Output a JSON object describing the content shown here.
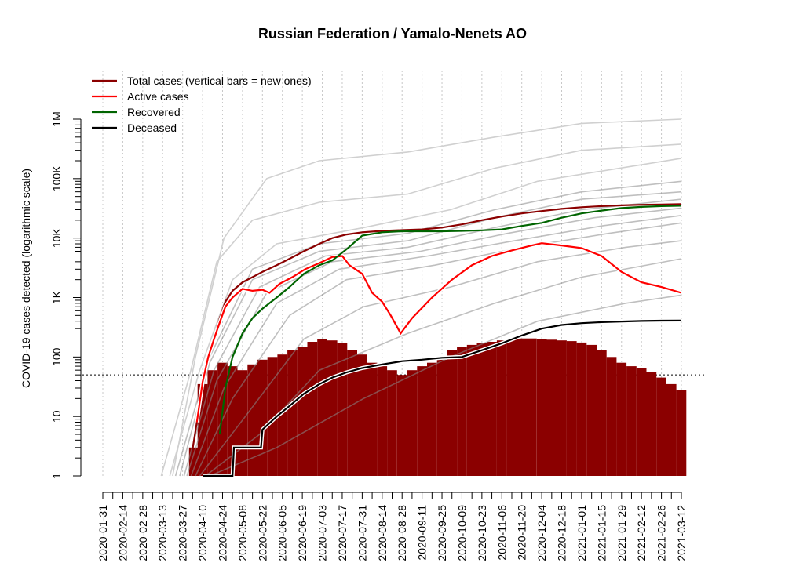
{
  "chart_data": {
    "type": "line",
    "title": "Russian Federation / Yamalo-Nenets AO",
    "ylabel": "COVID-19 cases detected (logarithmic scale)",
    "xlabel": "",
    "y_scale": "log",
    "ylim": [
      1,
      1000000
    ],
    "y_ticks": [
      {
        "value": 1,
        "label": "1"
      },
      {
        "value": 10,
        "label": "10"
      },
      {
        "value": 100,
        "label": "100"
      },
      {
        "value": 1000,
        "label": "1K"
      },
      {
        "value": 10000,
        "label": "10K"
      },
      {
        "value": 100000,
        "label": "100K"
      },
      {
        "value": 1000000,
        "label": "1M"
      }
    ],
    "x_range": [
      "2020-01-31",
      "2021-03-12"
    ],
    "x_tick_labels": [
      "2020-01-31",
      "2020-02-14",
      "2020-02-28",
      "2020-03-13",
      "2020-03-27",
      "2020-04-10",
      "2020-04-24",
      "2020-05-08",
      "2020-05-22",
      "2020-06-05",
      "2020-06-19",
      "2020-07-03",
      "2020-07-17",
      "2020-07-31",
      "2020-08-14",
      "2020-08-28",
      "2020-09-11",
      "2020-09-25",
      "2020-10-09",
      "2020-10-23",
      "2020-11-06",
      "2020-11-20",
      "2020-12-04",
      "2020-12-18",
      "2021-01-01",
      "2021-01-15",
      "2021-01-29",
      "2021-02-12",
      "2021-02-26",
      "2021-03-12"
    ],
    "grid": "vertical dotted",
    "reference_line": 50,
    "legend_position": "top-left",
    "legend": [
      {
        "label": "Total cases (vertical bars = new ones)",
        "color": "#8b0000"
      },
      {
        "label": "Active cases",
        "color": "#ff0000"
      },
      {
        "label": "Recovered",
        "color": "#006400"
      },
      {
        "label": "Deceased",
        "color": "#000000"
      }
    ],
    "series": [
      {
        "name": "Total cases (vertical bars = new ones)",
        "color": "#8b0000",
        "points": [
          [
            "2020-04-02",
            2
          ],
          [
            "2020-04-06",
            8
          ],
          [
            "2020-04-10",
            40
          ],
          [
            "2020-04-14",
            110
          ],
          [
            "2020-04-18",
            220
          ],
          [
            "2020-04-22",
            450
          ],
          [
            "2020-04-26",
            850
          ],
          [
            "2020-05-01",
            1300
          ],
          [
            "2020-05-08",
            1800
          ],
          [
            "2020-05-15",
            2200
          ],
          [
            "2020-05-22",
            2700
          ],
          [
            "2020-06-01",
            3500
          ],
          [
            "2020-06-10",
            4500
          ],
          [
            "2020-06-20",
            6000
          ],
          [
            "2020-07-01",
            8000
          ],
          [
            "2020-07-10",
            10000
          ],
          [
            "2020-07-20",
            11500
          ],
          [
            "2020-07-31",
            12500
          ],
          [
            "2020-08-14",
            13200
          ],
          [
            "2020-08-28",
            13600
          ],
          [
            "2020-09-11",
            14000
          ],
          [
            "2020-09-25",
            15000
          ],
          [
            "2020-10-09",
            17000
          ],
          [
            "2020-10-23",
            20000
          ],
          [
            "2020-11-06",
            23000
          ],
          [
            "2020-11-20",
            26000
          ],
          [
            "2020-12-04",
            28500
          ],
          [
            "2020-12-18",
            31000
          ],
          [
            "2021-01-01",
            33000
          ],
          [
            "2021-01-15",
            34500
          ],
          [
            "2021-01-29",
            35500
          ],
          [
            "2021-02-12",
            36300
          ],
          [
            "2021-02-26",
            36800
          ],
          [
            "2021-03-12",
            37200
          ]
        ]
      },
      {
        "name": "Active cases",
        "color": "#ff0000",
        "points": [
          [
            "2020-04-06",
            8
          ],
          [
            "2020-04-10",
            38
          ],
          [
            "2020-04-14",
            100
          ],
          [
            "2020-04-18",
            200
          ],
          [
            "2020-04-22",
            380
          ],
          [
            "2020-04-26",
            700
          ],
          [
            "2020-05-01",
            1000
          ],
          [
            "2020-05-08",
            1400
          ],
          [
            "2020-05-15",
            1300
          ],
          [
            "2020-05-22",
            1350
          ],
          [
            "2020-05-27",
            1200
          ],
          [
            "2020-06-03",
            1700
          ],
          [
            "2020-06-12",
            2200
          ],
          [
            "2020-06-21",
            3000
          ],
          [
            "2020-07-01",
            3800
          ],
          [
            "2020-07-10",
            4800
          ],
          [
            "2020-07-17",
            5000
          ],
          [
            "2020-07-22",
            3500
          ],
          [
            "2020-07-31",
            2500
          ],
          [
            "2020-08-07",
            1200
          ],
          [
            "2020-08-14",
            850
          ],
          [
            "2020-08-20",
            500
          ],
          [
            "2020-08-27",
            250
          ],
          [
            "2020-09-04",
            450
          ],
          [
            "2020-09-18",
            1000
          ],
          [
            "2020-10-02",
            2000
          ],
          [
            "2020-10-16",
            3500
          ],
          [
            "2020-10-30",
            5000
          ],
          [
            "2020-11-13",
            6200
          ],
          [
            "2020-11-27",
            7500
          ],
          [
            "2020-12-04",
            8200
          ],
          [
            "2020-12-18",
            7500
          ],
          [
            "2021-01-01",
            6800
          ],
          [
            "2021-01-15",
            5000
          ],
          [
            "2021-01-29",
            2700
          ],
          [
            "2021-02-12",
            1800
          ],
          [
            "2021-02-26",
            1500
          ],
          [
            "2021-03-12",
            1200
          ]
        ]
      },
      {
        "name": "Recovered",
        "color": "#006400",
        "points": [
          [
            "2020-04-22",
            5
          ],
          [
            "2020-04-26",
            30
          ],
          [
            "2020-05-01",
            100
          ],
          [
            "2020-05-08",
            250
          ],
          [
            "2020-05-15",
            450
          ],
          [
            "2020-05-22",
            650
          ],
          [
            "2020-06-01",
            1000
          ],
          [
            "2020-06-10",
            1500
          ],
          [
            "2020-06-20",
            2500
          ],
          [
            "2020-07-01",
            3500
          ],
          [
            "2020-07-10",
            4200
          ],
          [
            "2020-07-20",
            6500
          ],
          [
            "2020-07-31",
            11000
          ],
          [
            "2020-08-14",
            12500
          ],
          [
            "2020-08-28",
            13000
          ],
          [
            "2020-09-11",
            13000
          ],
          [
            "2020-09-25",
            13000
          ],
          [
            "2020-10-09",
            13200
          ],
          [
            "2020-10-23",
            13500
          ],
          [
            "2020-11-06",
            14000
          ],
          [
            "2020-11-20",
            16000
          ],
          [
            "2020-12-04",
            18000
          ],
          [
            "2020-12-18",
            22000
          ],
          [
            "2021-01-01",
            26000
          ],
          [
            "2021-01-15",
            29000
          ],
          [
            "2021-01-29",
            32000
          ],
          [
            "2021-02-12",
            33500
          ],
          [
            "2021-02-26",
            34500
          ],
          [
            "2021-03-12",
            35000
          ]
        ]
      },
      {
        "name": "Deceased",
        "color": "#000000",
        "points": [
          [
            "2020-04-10",
            1
          ],
          [
            "2020-05-01",
            1
          ],
          [
            "2020-05-02",
            3
          ],
          [
            "2020-05-21",
            3
          ],
          [
            "2020-05-22",
            6
          ],
          [
            "2020-06-01",
            10
          ],
          [
            "2020-06-10",
            15
          ],
          [
            "2020-06-20",
            24
          ],
          [
            "2020-07-01",
            35
          ],
          [
            "2020-07-10",
            45
          ],
          [
            "2020-07-20",
            55
          ],
          [
            "2020-07-31",
            65
          ],
          [
            "2020-08-14",
            75
          ],
          [
            "2020-08-28",
            85
          ],
          [
            "2020-09-11",
            90
          ],
          [
            "2020-09-25",
            97
          ],
          [
            "2020-10-09",
            100
          ],
          [
            "2020-10-23",
            130
          ],
          [
            "2020-11-06",
            170
          ],
          [
            "2020-11-20",
            230
          ],
          [
            "2020-12-04",
            300
          ],
          [
            "2020-12-18",
            345
          ],
          [
            "2021-01-01",
            370
          ],
          [
            "2021-01-15",
            385
          ],
          [
            "2021-01-29",
            395
          ],
          [
            "2021-02-12",
            403
          ],
          [
            "2021-02-26",
            408
          ],
          [
            "2021-03-12",
            410
          ]
        ]
      }
    ],
    "comparison_lines_gray": [
      [
        [
          "2020-03-20",
          1
        ],
        [
          "2020-04-05",
          100
        ],
        [
          "2020-04-25",
          10000
        ],
        [
          "2020-05-25",
          100000
        ],
        [
          "2020-07-01",
          200000
        ],
        [
          "2020-09-01",
          280000
        ],
        [
          "2020-11-01",
          500000
        ],
        [
          "2021-01-01",
          850000
        ],
        [
          "2021-03-12",
          1000000
        ]
      ],
      [
        [
          "2020-03-12",
          1
        ],
        [
          "2020-04-01",
          50
        ],
        [
          "2020-04-20",
          4000
        ],
        [
          "2020-05-15",
          20000
        ],
        [
          "2020-07-01",
          40000
        ],
        [
          "2020-09-01",
          55000
        ],
        [
          "2020-11-01",
          150000
        ],
        [
          "2021-01-01",
          300000
        ],
        [
          "2021-03-12",
          380000
        ]
      ],
      [
        [
          "2020-03-18",
          1
        ],
        [
          "2020-04-08",
          60
        ],
        [
          "2020-05-01",
          2000
        ],
        [
          "2020-06-01",
          8000
        ],
        [
          "2020-08-01",
          15000
        ],
        [
          "2020-10-01",
          30000
        ],
        [
          "2020-12-01",
          90000
        ],
        [
          "2021-03-12",
          220000
        ]
      ],
      [
        [
          "2020-03-22",
          1
        ],
        [
          "2020-04-15",
          100
        ],
        [
          "2020-05-15",
          3000
        ],
        [
          "2020-07-01",
          8000
        ],
        [
          "2020-09-01",
          12000
        ],
        [
          "2020-11-01",
          30000
        ],
        [
          "2021-01-01",
          60000
        ],
        [
          "2021-03-12",
          90000
        ]
      ],
      [
        [
          "2020-03-25",
          1
        ],
        [
          "2020-04-15",
          80
        ],
        [
          "2020-05-15",
          2000
        ],
        [
          "2020-07-01",
          6000
        ],
        [
          "2020-09-01",
          9000
        ],
        [
          "2020-11-01",
          22000
        ],
        [
          "2021-01-01",
          45000
        ],
        [
          "2021-03-12",
          60000
        ]
      ],
      [
        [
          "2020-03-28",
          1
        ],
        [
          "2020-04-18",
          60
        ],
        [
          "2020-05-20",
          1500
        ],
        [
          "2020-07-05",
          5000
        ],
        [
          "2020-09-01",
          7000
        ],
        [
          "2020-11-01",
          15000
        ],
        [
          "2021-01-01",
          30000
        ],
        [
          "2021-03-12",
          45000
        ]
      ],
      [
        [
          "2020-03-30",
          1
        ],
        [
          "2020-04-20",
          40
        ],
        [
          "2020-05-25",
          1200
        ],
        [
          "2020-07-10",
          4000
        ],
        [
          "2020-09-10",
          6000
        ],
        [
          "2020-11-10",
          12000
        ],
        [
          "2021-01-10",
          22000
        ],
        [
          "2021-03-12",
          32000
        ]
      ],
      [
        [
          "2020-04-02",
          1
        ],
        [
          "2020-04-25",
          30
        ],
        [
          "2020-06-01",
          800
        ],
        [
          "2020-07-15",
          3000
        ],
        [
          "2020-09-15",
          5000
        ],
        [
          "2020-11-15",
          9000
        ],
        [
          "2021-01-15",
          16000
        ],
        [
          "2021-03-12",
          24000
        ]
      ],
      [
        [
          "2020-04-05",
          1
        ],
        [
          "2020-05-01",
          20
        ],
        [
          "2020-06-10",
          500
        ],
        [
          "2020-07-20",
          2000
        ],
        [
          "2020-09-20",
          3500
        ],
        [
          "2020-11-20",
          7000
        ],
        [
          "2021-01-20",
          12000
        ],
        [
          "2021-03-12",
          18000
        ]
      ],
      [
        [
          "2020-04-08",
          1
        ],
        [
          "2020-05-10",
          10
        ],
        [
          "2020-06-20",
          200
        ],
        [
          "2020-08-01",
          700
        ],
        [
          "2020-10-01",
          1500
        ],
        [
          "2020-12-01",
          4000
        ],
        [
          "2021-02-01",
          7000
        ],
        [
          "2021-03-12",
          9000
        ]
      ],
      [
        [
          "2020-04-12",
          1
        ],
        [
          "2020-05-20",
          5
        ],
        [
          "2020-07-01",
          60
        ],
        [
          "2020-09-01",
          250
        ],
        [
          "2020-11-01",
          800
        ],
        [
          "2021-01-01",
          2200
        ],
        [
          "2021-03-12",
          4500
        ]
      ],
      [
        [
          "2020-04-15",
          1
        ],
        [
          "2020-06-01",
          3
        ],
        [
          "2020-08-01",
          20
        ],
        [
          "2020-10-01",
          100
        ],
        [
          "2020-12-01",
          400
        ],
        [
          "2021-02-01",
          800
        ],
        [
          "2021-03-12",
          1100
        ]
      ]
    ],
    "new_cases_bars": [
      [
        "2020-04-04",
        3
      ],
      [
        "2020-04-10",
        35
      ],
      [
        "2020-04-17",
        60
      ],
      [
        "2020-04-24",
        80
      ],
      [
        "2020-05-01",
        70
      ],
      [
        "2020-05-08",
        60
      ],
      [
        "2020-05-15",
        75
      ],
      [
        "2020-05-22",
        90
      ],
      [
        "2020-05-29",
        100
      ],
      [
        "2020-06-05",
        110
      ],
      [
        "2020-06-12",
        130
      ],
      [
        "2020-06-19",
        150
      ],
      [
        "2020-06-26",
        180
      ],
      [
        "2020-07-03",
        200
      ],
      [
        "2020-07-10",
        190
      ],
      [
        "2020-07-17",
        170
      ],
      [
        "2020-07-24",
        130
      ],
      [
        "2020-07-31",
        110
      ],
      [
        "2020-08-07",
        80
      ],
      [
        "2020-08-14",
        70
      ],
      [
        "2020-08-21",
        60
      ],
      [
        "2020-08-28",
        50
      ],
      [
        "2020-09-04",
        60
      ],
      [
        "2020-09-11",
        70
      ],
      [
        "2020-09-18",
        80
      ],
      [
        "2020-09-25",
        90
      ],
      [
        "2020-10-02",
        130
      ],
      [
        "2020-10-09",
        150
      ],
      [
        "2020-10-16",
        160
      ],
      [
        "2020-10-23",
        170
      ],
      [
        "2020-10-30",
        180
      ],
      [
        "2020-11-06",
        190
      ],
      [
        "2020-11-13",
        200
      ],
      [
        "2020-11-20",
        205
      ],
      [
        "2020-11-27",
        205
      ],
      [
        "2020-12-04",
        200
      ],
      [
        "2020-12-11",
        195
      ],
      [
        "2020-12-18",
        190
      ],
      [
        "2020-12-25",
        185
      ],
      [
        "2021-01-01",
        175
      ],
      [
        "2021-01-08",
        160
      ],
      [
        "2021-01-15",
        130
      ],
      [
        "2021-01-22",
        100
      ],
      [
        "2021-01-29",
        80
      ],
      [
        "2021-02-05",
        70
      ],
      [
        "2021-02-12",
        65
      ],
      [
        "2021-02-19",
        55
      ],
      [
        "2021-02-26",
        45
      ],
      [
        "2021-03-05",
        35
      ],
      [
        "2021-03-12",
        28
      ]
    ]
  }
}
